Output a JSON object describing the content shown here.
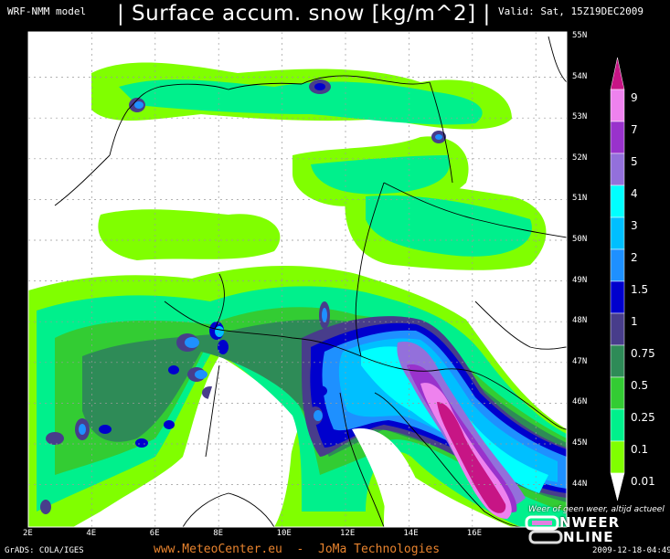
{
  "header": {
    "model": "WRF-NMM model",
    "title": "| Surface accum. snow [kg/m^2] |",
    "valid": "Valid: Sat, 15Z19DEC2009"
  },
  "map": {
    "lat_labels": [
      "55N",
      "54N",
      "53N",
      "52N",
      "51N",
      "50N",
      "49N",
      "48N",
      "47N",
      "46N",
      "45N",
      "44N"
    ],
    "lon_labels": [
      "2E",
      "4E",
      "6E",
      "8E",
      "10E",
      "12E",
      "14E",
      "16E"
    ],
    "background": "#ffffff"
  },
  "colorbar": {
    "labels": [
      "9",
      "7",
      "5",
      "4",
      "3",
      "2",
      "1.5",
      "1",
      "0.75",
      "0.5",
      "0.25",
      "0.1",
      "0.01"
    ],
    "colors": [
      "#c71585",
      "#ee82ee",
      "#9932cc",
      "#9370db",
      "#00ffff",
      "#00bfff",
      "#1e90ff",
      "#0000cd",
      "#483d8b",
      "#2e8b57",
      "#33cc33",
      "#00f08c",
      "#80ff00",
      "#ffffff"
    ]
  },
  "footer": {
    "grads": "GrADS: COLA/IGES",
    "credit": "www.MeteoCenter.eu  -  JoMa Technologies",
    "timestamp": "2009-12-18-04:49"
  },
  "watermark": {
    "slogan": "Weer of geen weer, altijd actueel",
    "logo_line1": "NWEER",
    "logo_line2": "NLINE"
  }
}
